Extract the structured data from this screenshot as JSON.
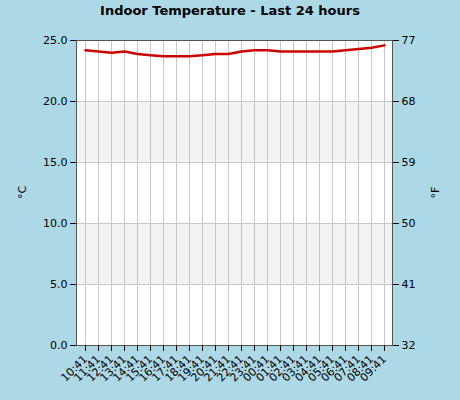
{
  "chart_data": {
    "type": "line",
    "title": "Indoor Temperature - Last 24 hours",
    "y_label": "°C",
    "y2_label": "°F",
    "categories": [
      "10:41",
      "11:41",
      "12:41",
      "13:41",
      "14:41",
      "15:41",
      "16:41",
      "17:41",
      "18:41",
      "19:41",
      "20:41",
      "21:41",
      "22:41",
      "23:41",
      "00:41",
      "01:41",
      "02:41",
      "03:41",
      "04:41",
      "05:41",
      "06:41",
      "07:41",
      "08:41",
      "09:41"
    ],
    "values": [
      24.2,
      24.1,
      24.0,
      24.1,
      23.9,
      23.8,
      23.7,
      23.7,
      23.7,
      23.8,
      23.9,
      23.9,
      24.1,
      24.2,
      24.2,
      24.1,
      24.1,
      24.1,
      24.1,
      24.1,
      24.2,
      24.3,
      24.4,
      24.6
    ],
    "color": "#cc0000",
    "ylim": [
      0,
      25
    ],
    "yticks": [
      {
        "value": 0,
        "label": "0.0"
      },
      {
        "value": 5,
        "label": "5.0"
      },
      {
        "value": 10,
        "label": "10.0"
      },
      {
        "value": 15,
        "label": "15.0"
      },
      {
        "value": 20,
        "label": "20.0"
      },
      {
        "value": 25,
        "label": "25.0"
      }
    ],
    "y2lim": [
      32,
      77
    ],
    "y2ticks": [
      32,
      41,
      50,
      59,
      68,
      77
    ],
    "grid": true
  }
}
